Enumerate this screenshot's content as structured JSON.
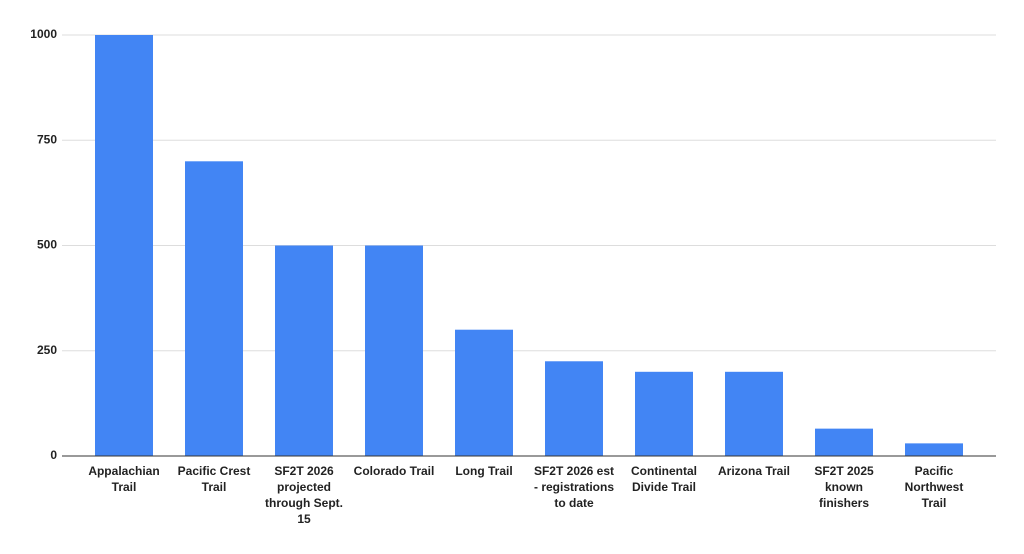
{
  "chart_data": {
    "type": "bar",
    "categories": [
      "Appalachian Trail",
      "Pacific Crest Trail",
      "SF2T 2026 projected through Sept. 15",
      "Colorado Trail",
      "Long Trail",
      "SF2T 2026 est - registrations to date",
      "Continental Divide Trail",
      "Arizona Trail",
      "SF2T 2025 known finishers",
      "Pacific Northwest Trail"
    ],
    "values": [
      1000,
      700,
      500,
      500,
      300,
      225,
      200,
      200,
      65,
      30
    ],
    "color": "#4285f4",
    "ylim": [
      0,
      1000
    ],
    "yticks": [
      0,
      250,
      500,
      750,
      1000
    ],
    "grid": true
  }
}
